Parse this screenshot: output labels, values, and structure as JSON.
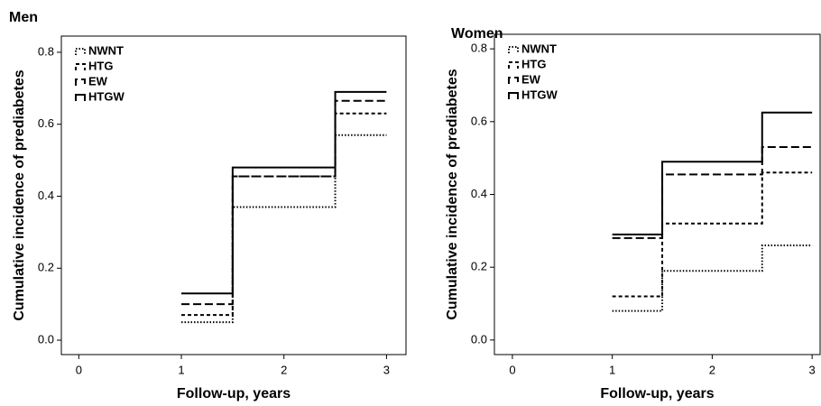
{
  "chart_data": [
    {
      "type": "step",
      "title": "Men",
      "xlabel": "Follow-up, years",
      "ylabel": "Cumulative incidence of prediabetes",
      "x": [
        1,
        1.5,
        2.5,
        3
      ],
      "series": [
        {
          "name": "NWNT",
          "color": "#000000",
          "linestyle": "dotted",
          "values": [
            0.05,
            0.37,
            0.57,
            0.57
          ]
        },
        {
          "name": "HTG",
          "color": "#000000",
          "linestyle": "short-dash",
          "values": [
            0.07,
            0.455,
            0.63,
            0.63
          ]
        },
        {
          "name": "EW",
          "color": "#000000",
          "linestyle": "long-dash",
          "values": [
            0.1,
            0.455,
            0.665,
            0.665
          ]
        },
        {
          "name": "HTGW",
          "color": "#000000",
          "linestyle": "solid",
          "values": [
            0.13,
            0.48,
            0.69,
            0.69
          ]
        }
      ],
      "xlim": [
        -0.17,
        3.19
      ],
      "xticks": [
        0,
        1,
        2,
        3
      ],
      "ylim": [
        -0.04,
        0.845
      ],
      "yticks": [
        {
          "value": 0,
          "label": "0.0"
        },
        {
          "value": 0.2,
          "label": "0.2"
        },
        {
          "value": 0.4,
          "label": "0.4"
        },
        {
          "value": 0.6,
          "label": "0.6"
        },
        {
          "value": 0.8,
          "label": "0.8"
        }
      ],
      "legend": "upper-left"
    },
    {
      "type": "step",
      "title": "Women",
      "xlabel": "Follow-up, years",
      "ylabel": "Cumulative incidence of prediabetes",
      "x": [
        1,
        1.5,
        2.5,
        3
      ],
      "series": [
        {
          "name": "NWNT",
          "color": "#000000",
          "linestyle": "dotted",
          "values": [
            0.08,
            0.19,
            0.26,
            0.26
          ]
        },
        {
          "name": "HTG",
          "color": "#000000",
          "linestyle": "short-dash",
          "values": [
            0.12,
            0.32,
            0.46,
            0.46
          ]
        },
        {
          "name": "EW",
          "color": "#000000",
          "linestyle": "long-dash",
          "values": [
            0.28,
            0.455,
            0.53,
            0.53
          ]
        },
        {
          "name": "HTGW",
          "color": "#000000",
          "linestyle": "solid",
          "values": [
            0.29,
            0.49,
            0.625,
            0.625
          ]
        }
      ],
      "xlim": [
        -0.18,
        3.08
      ],
      "xticks": [
        0,
        1,
        2,
        3
      ],
      "ylim": [
        -0.04,
        0.84
      ],
      "yticks": [
        {
          "value": 0,
          "label": "0.0"
        },
        {
          "value": 0.2,
          "label": "0.2"
        },
        {
          "value": 0.4,
          "label": "0.4"
        },
        {
          "value": 0.6,
          "label": "0.6"
        },
        {
          "value": 0.8,
          "label": "0.8"
        }
      ],
      "legend": "upper-left"
    }
  ]
}
